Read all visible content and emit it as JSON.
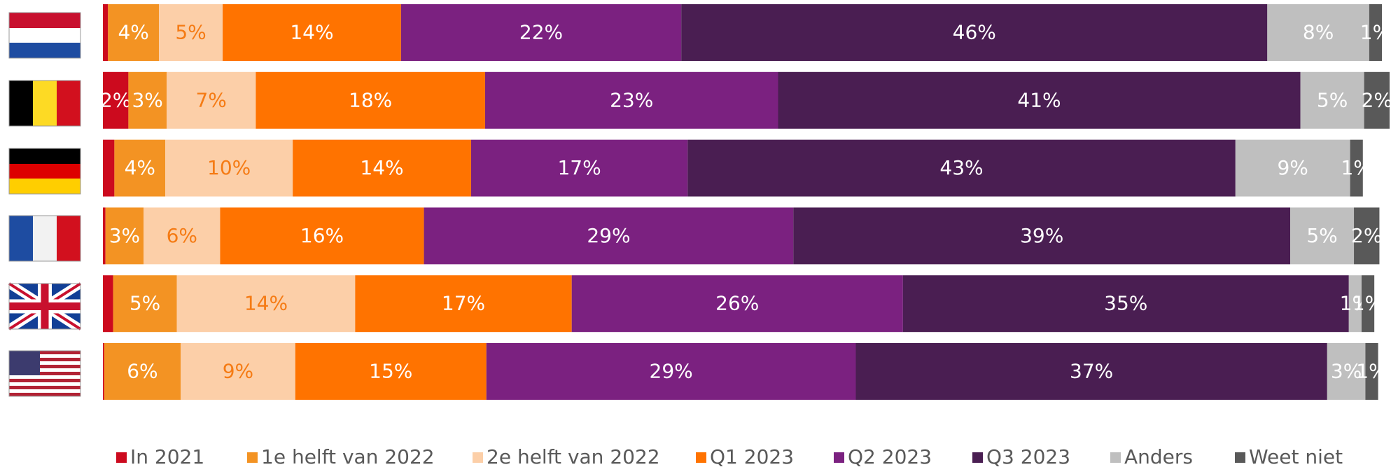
{
  "chart_data": {
    "type": "stacked-barh",
    "categories": [
      null,
      null,
      null,
      null,
      null,
      null
    ],
    "xlim": [
      0,
      101
    ],
    "legend": "bottom",
    "series": [
      {
        "name": "In 2021",
        "color": "#cc0a1e",
        "label_color": "#ffffff",
        "values": [
          0.4,
          2,
          0.9,
          0.2,
          0.8,
          0.1
        ],
        "value_labels": [
          null,
          "2%",
          null,
          null,
          null,
          null
        ]
      },
      {
        "name": "1e helft van 2022",
        "color": "#f39323",
        "label_color": "#ffffff",
        "values": [
          4,
          3,
          4,
          3,
          5,
          6
        ],
        "value_labels": [
          "4%",
          "3%",
          "4%",
          "3%",
          "5%",
          "6%"
        ]
      },
      {
        "name": "2e helft van 2022",
        "color": "#fccfa8",
        "label_color": "#f57b14",
        "values": [
          5,
          7,
          10,
          6,
          14,
          9
        ],
        "value_labels": [
          "5%",
          "7%",
          "10%",
          "6%",
          "14%",
          "9%"
        ]
      },
      {
        "name": "Q1 2023",
        "color": "#ff7300",
        "label_color": "#ffffff",
        "values": [
          14,
          18,
          14,
          16,
          17,
          15
        ],
        "value_labels": [
          "14%",
          "18%",
          "14%",
          "16%",
          "17%",
          "15%"
        ]
      },
      {
        "name": "Q2 2023",
        "color": "#7b2180",
        "label_color": "#ffffff",
        "values": [
          22,
          23,
          17,
          29,
          26,
          29
        ],
        "value_labels": [
          "22%",
          "23%",
          "17%",
          "29%",
          "26%",
          "29%"
        ]
      },
      {
        "name": "Q3 2023",
        "color": "#4a1e52",
        "label_color": "#ffffff",
        "values": [
          46,
          41,
          43,
          39,
          35,
          37
        ],
        "value_labels": [
          "46%",
          "41%",
          "43%",
          "39%",
          "35%",
          "37%"
        ]
      },
      {
        "name": "Anders",
        "color": "#bfbfbf",
        "label_color": "#ffffff",
        "values": [
          8,
          5,
          9,
          5,
          1,
          3
        ],
        "value_labels": [
          "8%",
          "5%",
          "9%",
          "5%",
          "1%",
          "3%"
        ]
      },
      {
        "name": "Weet niet",
        "color": "#595959",
        "label_color": "#ffffff",
        "values": [
          1,
          2,
          1,
          2,
          1,
          1
        ],
        "value_labels": [
          "1%",
          "2%",
          "1%",
          "2%",
          "1%",
          "1%"
        ]
      }
    ]
  }
}
